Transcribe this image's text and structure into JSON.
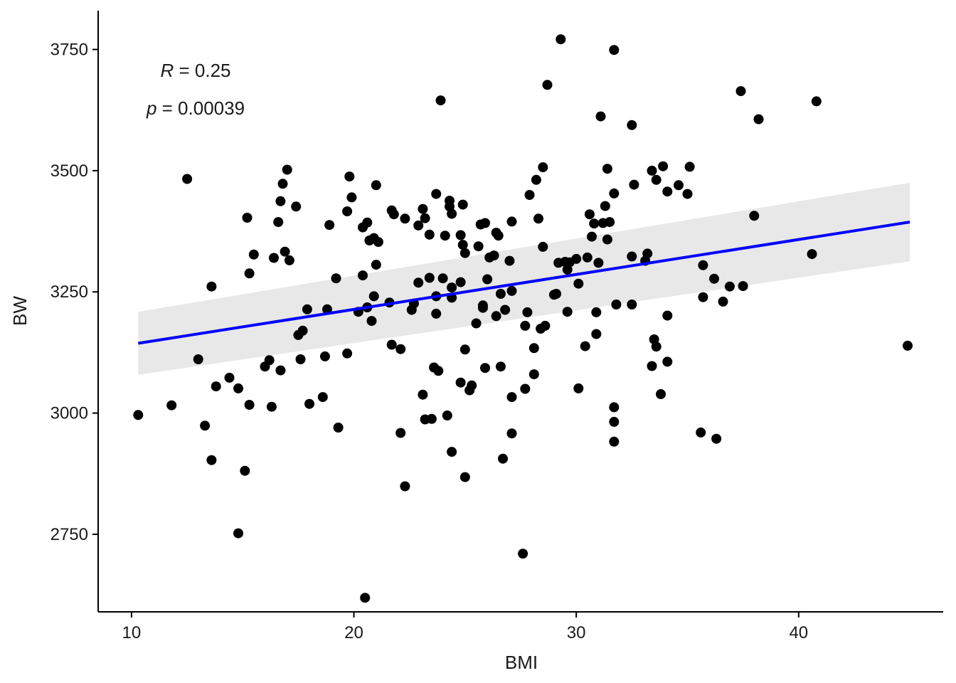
{
  "chart_data": {
    "type": "scatter",
    "xlabel": "BMI",
    "ylabel": "BW",
    "xlim": [
      8.5,
      46.5
    ],
    "ylim": [
      2590,
      3830
    ],
    "x_ticks": [
      10,
      20,
      30,
      40
    ],
    "y_ticks": [
      2750,
      3000,
      3250,
      3500,
      3750
    ],
    "grid": false,
    "annotations": {
      "r_symbol": "R",
      "r_text": " = 0.25",
      "p_symbol": "p",
      "p_text": " = 0.00039"
    },
    "regression": {
      "x": [
        10.3,
        45.0
      ],
      "y": [
        3144,
        3394
      ],
      "ci_lower": [
        3079,
        3313
      ],
      "ci_upper": [
        3209,
        3475
      ],
      "line_color": "#0000ff",
      "band_color": "#d9d9d9"
    },
    "point_color": "#000000",
    "points": [
      [
        10.3,
        2996
      ],
      [
        11.8,
        3016
      ],
      [
        12.5,
        3483
      ],
      [
        13.0,
        3111
      ],
      [
        13.3,
        2974
      ],
      [
        13.6,
        2903
      ],
      [
        13.6,
        3261
      ],
      [
        13.8,
        3055
      ],
      [
        14.4,
        3073
      ],
      [
        14.8,
        3051
      ],
      [
        14.8,
        2752
      ],
      [
        15.1,
        2881
      ],
      [
        15.2,
        3403
      ],
      [
        15.3,
        3288
      ],
      [
        15.3,
        3017
      ],
      [
        15.5,
        3327
      ],
      [
        16.0,
        3096
      ],
      [
        16.2,
        3109
      ],
      [
        16.3,
        3013
      ],
      [
        16.4,
        3320
      ],
      [
        16.6,
        3394
      ],
      [
        16.7,
        3437
      ],
      [
        16.7,
        3088
      ],
      [
        16.8,
        3473
      ],
      [
        16.9,
        3333
      ],
      [
        17.0,
        3502
      ],
      [
        17.1,
        3315
      ],
      [
        17.4,
        3426
      ],
      [
        17.5,
        3161
      ],
      [
        17.6,
        3111
      ],
      [
        17.7,
        3170
      ],
      [
        17.9,
        3214
      ],
      [
        18.0,
        3019
      ],
      [
        18.6,
        3033
      ],
      [
        18.7,
        3117
      ],
      [
        18.8,
        3214
      ],
      [
        18.9,
        3388
      ],
      [
        19.2,
        3278
      ],
      [
        19.3,
        2970
      ],
      [
        19.7,
        3416
      ],
      [
        19.7,
        3123
      ],
      [
        19.8,
        3488
      ],
      [
        19.9,
        3445
      ],
      [
        20.2,
        3209
      ],
      [
        20.4,
        3284
      ],
      [
        20.4,
        3383
      ],
      [
        20.5,
        2619
      ],
      [
        20.6,
        3393
      ],
      [
        20.6,
        3218
      ],
      [
        20.7,
        3356
      ],
      [
        20.8,
        3190
      ],
      [
        20.9,
        3361
      ],
      [
        20.9,
        3241
      ],
      [
        21.0,
        3306
      ],
      [
        21.0,
        3470
      ],
      [
        21.1,
        3353
      ],
      [
        21.6,
        3228
      ],
      [
        21.7,
        3141
      ],
      [
        21.7,
        3418
      ],
      [
        21.8,
        3410
      ],
      [
        22.1,
        3132
      ],
      [
        22.1,
        2959
      ],
      [
        22.3,
        3401
      ],
      [
        22.3,
        2849
      ],
      [
        22.6,
        3213
      ],
      [
        22.7,
        3226
      ],
      [
        22.9,
        3387
      ],
      [
        22.9,
        3269
      ],
      [
        23.1,
        3038
      ],
      [
        23.1,
        3421
      ],
      [
        23.2,
        2987
      ],
      [
        23.2,
        3402
      ],
      [
        23.4,
        3279
      ],
      [
        23.4,
        3368
      ],
      [
        23.5,
        2988
      ],
      [
        23.6,
        3094
      ],
      [
        23.7,
        3452
      ],
      [
        23.7,
        3241
      ],
      [
        23.7,
        3205
      ],
      [
        23.8,
        3087
      ],
      [
        23.9,
        3645
      ],
      [
        24.0,
        3278
      ],
      [
        24.1,
        3366
      ],
      [
        24.2,
        2995
      ],
      [
        24.3,
        3438
      ],
      [
        24.3,
        3426
      ],
      [
        24.4,
        3411
      ],
      [
        24.4,
        3259
      ],
      [
        24.4,
        2920
      ],
      [
        24.4,
        3238
      ],
      [
        24.8,
        3367
      ],
      [
        24.8,
        3063
      ],
      [
        24.8,
        3270
      ],
      [
        24.9,
        3430
      ],
      [
        24.9,
        3347
      ],
      [
        25.0,
        2868
      ],
      [
        25.0,
        3131
      ],
      [
        25.0,
        3330
      ],
      [
        25.2,
        3047
      ],
      [
        25.3,
        3057
      ],
      [
        25.5,
        3185
      ],
      [
        25.6,
        3344
      ],
      [
        25.7,
        3389
      ],
      [
        25.8,
        3222
      ],
      [
        25.8,
        3217
      ],
      [
        25.9,
        3392
      ],
      [
        25.9,
        3093
      ],
      [
        26.0,
        3276
      ],
      [
        26.1,
        3321
      ],
      [
        26.3,
        3325
      ],
      [
        26.4,
        3372
      ],
      [
        26.4,
        3200
      ],
      [
        26.5,
        3366
      ],
      [
        26.6,
        3096
      ],
      [
        26.6,
        3246
      ],
      [
        26.7,
        2906
      ],
      [
        26.8,
        3213
      ],
      [
        27.0,
        3314
      ],
      [
        27.1,
        3395
      ],
      [
        27.1,
        3033
      ],
      [
        27.1,
        2958
      ],
      [
        27.1,
        3252
      ],
      [
        27.6,
        2710
      ],
      [
        27.7,
        3050
      ],
      [
        27.7,
        3180
      ],
      [
        27.8,
        3208
      ],
      [
        27.9,
        3450
      ],
      [
        28.1,
        3134
      ],
      [
        28.1,
        3080
      ],
      [
        28.2,
        3481
      ],
      [
        28.3,
        3401
      ],
      [
        28.4,
        3174
      ],
      [
        28.5,
        3507
      ],
      [
        28.5,
        3343
      ],
      [
        28.6,
        3180
      ],
      [
        28.7,
        3677
      ],
      [
        29.0,
        3244
      ],
      [
        29.1,
        3246
      ],
      [
        29.2,
        3310
      ],
      [
        29.3,
        3771
      ],
      [
        29.5,
        3312
      ],
      [
        29.6,
        3209
      ],
      [
        29.6,
        3296
      ],
      [
        29.7,
        3311
      ],
      [
        30.0,
        3318
      ],
      [
        30.1,
        3267
      ],
      [
        30.1,
        3051
      ],
      [
        30.4,
        3138
      ],
      [
        30.5,
        3321
      ],
      [
        30.6,
        3410
      ],
      [
        30.7,
        3364
      ],
      [
        30.8,
        3391
      ],
      [
        30.9,
        3208
      ],
      [
        30.9,
        3163
      ],
      [
        31.0,
        3310
      ],
      [
        31.1,
        3612
      ],
      [
        31.2,
        3392
      ],
      [
        31.3,
        3427
      ],
      [
        31.4,
        3358
      ],
      [
        31.4,
        3504
      ],
      [
        31.5,
        3394
      ],
      [
        31.7,
        3749
      ],
      [
        31.7,
        3453
      ],
      [
        31.7,
        3012
      ],
      [
        31.7,
        2982
      ],
      [
        31.7,
        2941
      ],
      [
        31.8,
        3224
      ],
      [
        32.5,
        3323
      ],
      [
        32.5,
        3224
      ],
      [
        32.5,
        3594
      ],
      [
        32.6,
        3471
      ],
      [
        33.1,
        3314
      ],
      [
        33.2,
        3329
      ],
      [
        33.4,
        3097
      ],
      [
        33.4,
        3500
      ],
      [
        33.5,
        3152
      ],
      [
        33.6,
        3481
      ],
      [
        33.6,
        3137
      ],
      [
        33.8,
        3039
      ],
      [
        33.9,
        3509
      ],
      [
        34.1,
        3457
      ],
      [
        34.1,
        3106
      ],
      [
        34.1,
        3201
      ],
      [
        34.6,
        3470
      ],
      [
        35.0,
        3452
      ],
      [
        35.1,
        3508
      ],
      [
        35.6,
        2960
      ],
      [
        35.7,
        3239
      ],
      [
        35.7,
        3305
      ],
      [
        36.2,
        3277
      ],
      [
        36.3,
        2947
      ],
      [
        36.6,
        3230
      ],
      [
        36.9,
        3261
      ],
      [
        37.4,
        3664
      ],
      [
        37.5,
        3262
      ],
      [
        38.0,
        3407
      ],
      [
        38.2,
        3606
      ],
      [
        40.6,
        3328
      ],
      [
        40.8,
        3643
      ],
      [
        44.9,
        3139
      ]
    ]
  }
}
